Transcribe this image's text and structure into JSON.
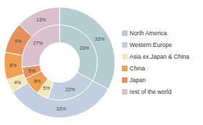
{
  "chart_data": {
    "type": "donut",
    "categories": [
      "North America",
      "Western Europe",
      "Asia ex.Japan & China",
      "China",
      "Japan",
      "rest of the world"
    ],
    "colors": [
      "#b5cdd0",
      "#c2cfe0",
      "#f5e8b8",
      "#f0a050",
      "#e8905a",
      "#d9c0cc"
    ],
    "series": [
      {
        "values": [
          33,
          33,
          4,
          8,
          9,
          13
        ],
        "value_labels": [
          "33%",
          "33%",
          "4%",
          "8%",
          "9%",
          "13%"
        ]
      },
      {
        "values": [
          33,
          22,
          5,
          8,
          5,
          27
        ],
        "value_labels": [
          "33%",
          "22%",
          "5%",
          "8%",
          "5%",
          "27%"
        ]
      }
    ],
    "data_labels": true,
    "legend": "right"
  }
}
